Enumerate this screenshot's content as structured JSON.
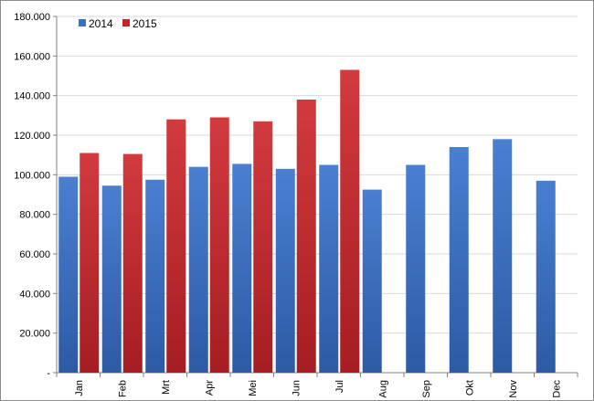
{
  "chart_data": {
    "type": "bar",
    "title": "",
    "xlabel": "",
    "ylabel": "",
    "categories": [
      "Jan",
      "Feb",
      "Mrt",
      "Apr",
      "Mei",
      "Jun",
      "Jul",
      "Aug",
      "Sep",
      "Okt",
      "Nov",
      "Dec"
    ],
    "series": [
      {
        "name": "2014",
        "color": "#3b6fc1",
        "values": [
          99000,
          94500,
          97500,
          104000,
          105500,
          103000,
          105000,
          92500,
          105000,
          114000,
          118000,
          97000
        ]
      },
      {
        "name": "2015",
        "color": "#c0262b",
        "values": [
          111000,
          110500,
          128000,
          129000,
          127000,
          138000,
          153000,
          null,
          null,
          null,
          null,
          null
        ]
      }
    ],
    "ylim": [
      0,
      180000
    ],
    "yticks": [
      0,
      20000,
      40000,
      60000,
      80000,
      100000,
      120000,
      140000,
      160000,
      180000
    ],
    "ytick_labels": [
      "-",
      "20.000",
      "40.000",
      "60.000",
      "80.000",
      "100.000",
      "120.000",
      "140.000",
      "160.000",
      "180.000"
    ],
    "grid": true,
    "legend_position": "top-left"
  }
}
